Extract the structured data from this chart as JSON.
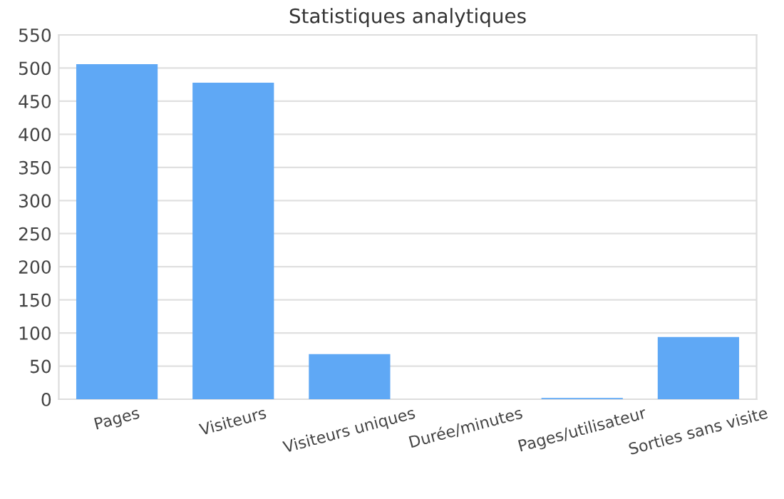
{
  "chart_data": {
    "type": "bar",
    "title": "Statistiques analytiques",
    "categories": [
      "Pages",
      "Visiteurs",
      "Visiteurs uniques",
      "Durée/minutes",
      "Pages/utilisateur",
      "Sorties sans visite"
    ],
    "values": [
      506,
      478,
      68,
      0,
      2,
      94
    ],
    "color": "#5fa8f5",
    "ylim": [
      0,
      550
    ],
    "yticks": [
      0,
      50,
      100,
      150,
      200,
      250,
      300,
      350,
      400,
      450,
      500,
      550
    ],
    "grid": "y",
    "legend": false
  }
}
